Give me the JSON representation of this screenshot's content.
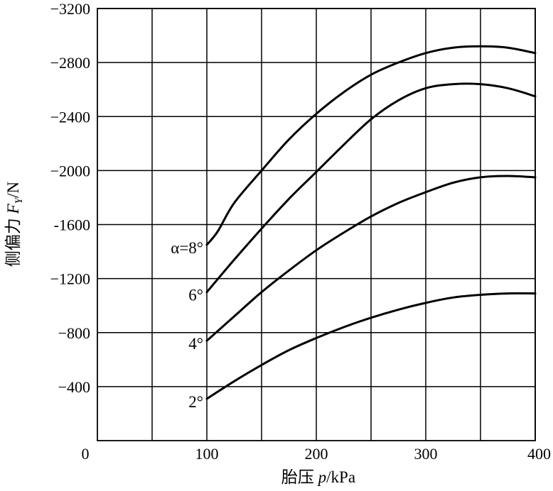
{
  "chart_data": {
    "type": "line",
    "title": "",
    "xlabel_prefix": "胎压 ",
    "xlabel_var": "p",
    "xlabel_unit": "/kPa",
    "ylabel_prefix": "侧偏力 ",
    "ylabel_var": "F",
    "ylabel_sub": "Y",
    "ylabel_unit": "/N",
    "xlim": [
      0,
      400
    ],
    "ylim": [
      0,
      -3200
    ],
    "x_ticks": [
      0,
      100,
      200,
      300,
      400
    ],
    "x_tick_labels": [
      "0",
      "100",
      "200",
      "300",
      "400"
    ],
    "x_gridlines": [
      50,
      100,
      150,
      200,
      250,
      300,
      350,
      400
    ],
    "y_ticks": [
      -400,
      -800,
      -1200,
      -1600,
      -2000,
      -2400,
      -2800,
      -3200
    ],
    "y_tick_labels": [
      "−400",
      "−800",
      "−1200",
      "-1600",
      "−2000",
      "−2400",
      "−2800",
      "−3200"
    ],
    "grid": true,
    "legend": "none",
    "series": [
      {
        "name": "α=8°",
        "x": [
          100,
          110,
          125,
          150,
          175,
          200,
          225,
          250,
          275,
          300,
          325,
          350,
          375,
          400
        ],
        "values": [
          -1450,
          -1550,
          -1760,
          -2000,
          -2230,
          -2420,
          -2580,
          -2710,
          -2800,
          -2870,
          -2910,
          -2920,
          -2910,
          -2870
        ]
      },
      {
        "name": "6°",
        "x": [
          100,
          125,
          150,
          175,
          200,
          225,
          250,
          275,
          300,
          325,
          350,
          375,
          400
        ],
        "values": [
          -1100,
          -1340,
          -1570,
          -1790,
          -1990,
          -2190,
          -2380,
          -2520,
          -2610,
          -2640,
          -2640,
          -2610,
          -2550
        ]
      },
      {
        "name": "4°",
        "x": [
          100,
          125,
          150,
          175,
          200,
          225,
          250,
          275,
          300,
          325,
          350,
          375,
          400
        ],
        "values": [
          -740,
          -920,
          -1100,
          -1260,
          -1410,
          -1540,
          -1660,
          -1760,
          -1840,
          -1910,
          -1950,
          -1960,
          -1950
        ]
      },
      {
        "name": "2°",
        "x": [
          100,
          125,
          150,
          175,
          200,
          225,
          250,
          275,
          300,
          325,
          350,
          375,
          400
        ],
        "values": [
          -310,
          -440,
          -560,
          -670,
          -760,
          -840,
          -910,
          -970,
          -1020,
          -1060,
          -1080,
          -1090,
          -1090
        ]
      }
    ],
    "curve_labels": [
      {
        "text": "α=8°",
        "series": 0
      },
      {
        "text": "6°",
        "series": 1
      },
      {
        "text": "4°",
        "series": 2
      },
      {
        "text": "2°",
        "series": 3
      }
    ]
  }
}
